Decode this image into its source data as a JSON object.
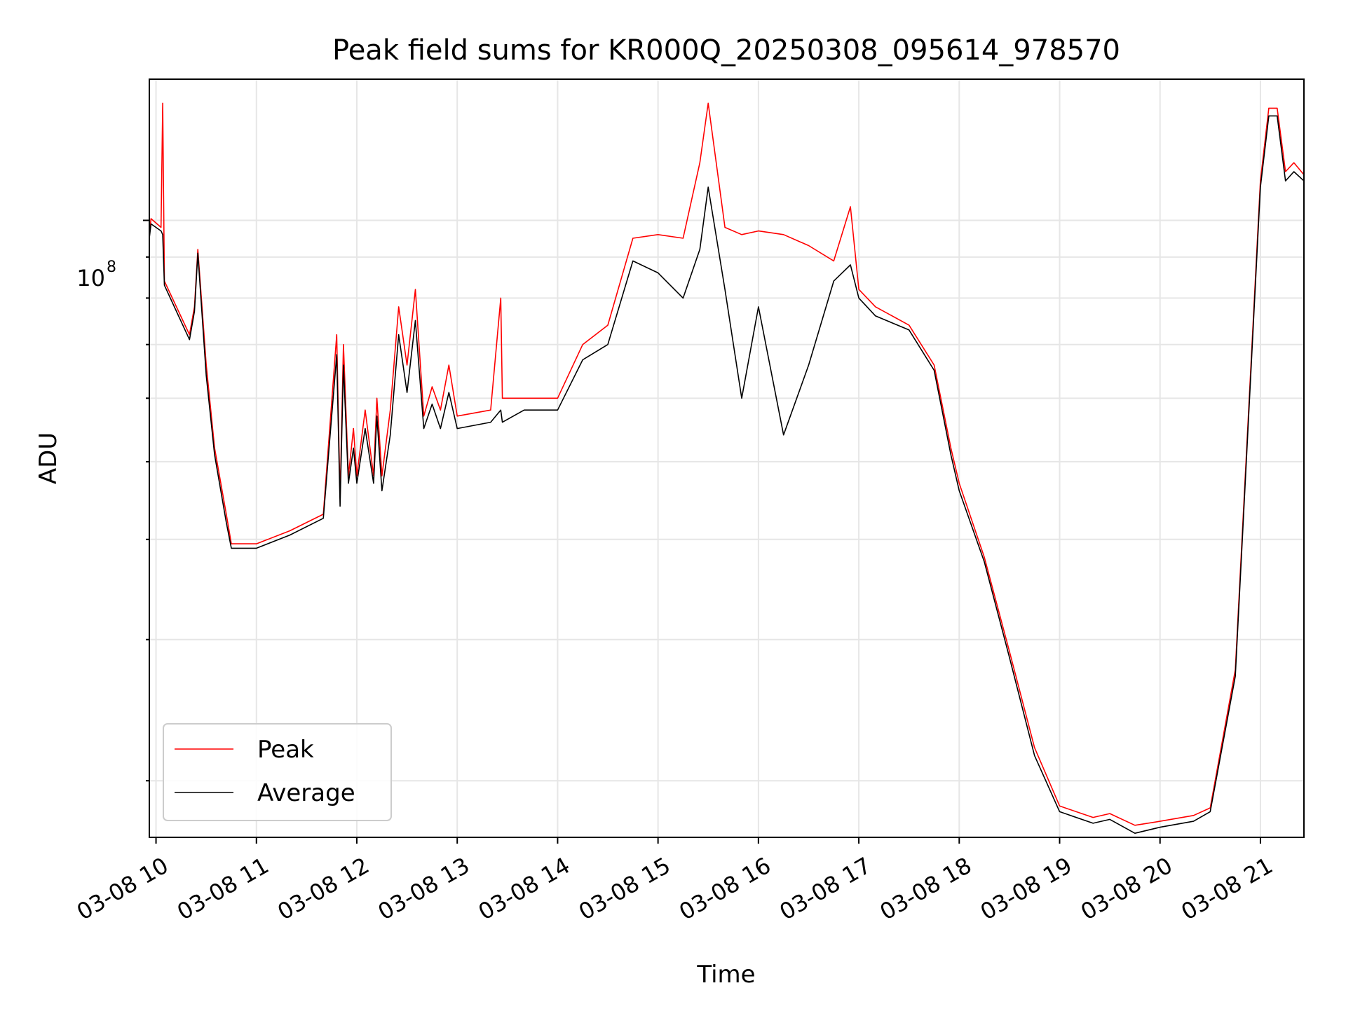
{
  "chart_data": {
    "type": "line",
    "title": "Peak field sums for KR000Q_20250308_095614_978570",
    "xlabel": "Time",
    "ylabel": "ADU",
    "y_scale": "log",
    "y_major_tick_label": {
      "base": "10",
      "exponent": "8",
      "value": 100000000
    },
    "y_minor_ticks": [
      20000000,
      30000000,
      40000000,
      50000000,
      60000000,
      70000000,
      80000000,
      90000000
    ],
    "ylim": [
      17000000,
      150000000
    ],
    "xlim": [
      "2025-03-08 09:56",
      "2025-03-08 21:26"
    ],
    "x_tick_values": [
      "2025-03-08 10:00",
      "2025-03-08 11:00",
      "2025-03-08 12:00",
      "2025-03-08 13:00",
      "2025-03-08 14:00",
      "2025-03-08 15:00",
      "2025-03-08 16:00",
      "2025-03-08 17:00",
      "2025-03-08 18:00",
      "2025-03-08 19:00",
      "2025-03-08 20:00",
      "2025-03-08 21:00"
    ],
    "x_tick_labels": [
      "03-08 10",
      "03-08 11",
      "03-08 12",
      "03-08 13",
      "03-08 14",
      "03-08 15",
      "03-08 16",
      "03-08 17",
      "03-08 18",
      "03-08 19",
      "03-08 20",
      "03-08 21"
    ],
    "grid": true,
    "legend_position": "lower-left",
    "colors": {
      "peak": "#ff0000",
      "average": "#000000",
      "grid": "#e6e6e6"
    },
    "series": [
      {
        "name": "Peak",
        "x": [
          "2025-03-08 09:56",
          "2025-03-08 09:57",
          "2025-03-08 10:03",
          "2025-03-08 10:04",
          "2025-03-08 10:05",
          "2025-03-08 10:20",
          "2025-03-08 10:23",
          "2025-03-08 10:25",
          "2025-03-08 10:30",
          "2025-03-08 10:35",
          "2025-03-08 10:42",
          "2025-03-08 10:45",
          "2025-03-08 11:00",
          "2025-03-08 11:20",
          "2025-03-08 11:40",
          "2025-03-08 11:48",
          "2025-03-08 11:50",
          "2025-03-08 11:52",
          "2025-03-08 11:55",
          "2025-03-08 11:58",
          "2025-03-08 12:00",
          "2025-03-08 12:05",
          "2025-03-08 12:10",
          "2025-03-08 12:12",
          "2025-03-08 12:15",
          "2025-03-08 12:20",
          "2025-03-08 12:25",
          "2025-03-08 12:30",
          "2025-03-08 12:35",
          "2025-03-08 12:40",
          "2025-03-08 12:45",
          "2025-03-08 12:50",
          "2025-03-08 12:55",
          "2025-03-08 13:00",
          "2025-03-08 13:20",
          "2025-03-08 13:26",
          "2025-03-08 13:27",
          "2025-03-08 13:40",
          "2025-03-08 14:00",
          "2025-03-08 14:15",
          "2025-03-08 14:30",
          "2025-03-08 14:45",
          "2025-03-08 15:00",
          "2025-03-08 15:15",
          "2025-03-08 15:25",
          "2025-03-08 15:30",
          "2025-03-08 15:40",
          "2025-03-08 15:50",
          "2025-03-08 16:00",
          "2025-03-08 16:15",
          "2025-03-08 16:30",
          "2025-03-08 16:45",
          "2025-03-08 16:55",
          "2025-03-08 17:00",
          "2025-03-08 17:10",
          "2025-03-08 17:30",
          "2025-03-08 17:45",
          "2025-03-08 17:55",
          "2025-03-08 18:00",
          "2025-03-08 18:15",
          "2025-03-08 18:30",
          "2025-03-08 18:45",
          "2025-03-08 19:00",
          "2025-03-08 19:20",
          "2025-03-08 19:30",
          "2025-03-08 19:45",
          "2025-03-08 20:00",
          "2025-03-08 20:20",
          "2025-03-08 20:30",
          "2025-03-08 20:45",
          "2025-03-08 21:00",
          "2025-03-08 21:05",
          "2025-03-08 21:10",
          "2025-03-08 21:15",
          "2025-03-08 21:20",
          "2025-03-08 21:26"
        ],
        "values": [
          96000000,
          100500000,
          98000000,
          140000000,
          84000000,
          72000000,
          78000000,
          92000000,
          66000000,
          52000000,
          43000000,
          39500000,
          39500000,
          41000000,
          43000000,
          72000000,
          45000000,
          70000000,
          48000000,
          55000000,
          48000000,
          58000000,
          48000000,
          60000000,
          48000000,
          58000000,
          78000000,
          66000000,
          82000000,
          57000000,
          62000000,
          58000000,
          66000000,
          57000000,
          58000000,
          80000000,
          60000000,
          60000000,
          60000000,
          70000000,
          74000000,
          95000000,
          96000000,
          95000000,
          118000000,
          140000000,
          98000000,
          96000000,
          97000000,
          96000000,
          93000000,
          89000000,
          104000000,
          82000000,
          78000000,
          74000000,
          66000000,
          52000000,
          47000000,
          38000000,
          29000000,
          22000000,
          18600000,
          18000000,
          18200000,
          17600000,
          17800000,
          18100000,
          18500000,
          27500000,
          112000000,
          138000000,
          138000000,
          115000000,
          118000000,
          114000000
        ]
      },
      {
        "name": "Average",
        "x": [
          "2025-03-08 09:56",
          "2025-03-08 09:57",
          "2025-03-08 10:03",
          "2025-03-08 10:04",
          "2025-03-08 10:05",
          "2025-03-08 10:20",
          "2025-03-08 10:23",
          "2025-03-08 10:25",
          "2025-03-08 10:30",
          "2025-03-08 10:35",
          "2025-03-08 10:42",
          "2025-03-08 10:45",
          "2025-03-08 11:00",
          "2025-03-08 11:20",
          "2025-03-08 11:40",
          "2025-03-08 11:48",
          "2025-03-08 11:50",
          "2025-03-08 11:52",
          "2025-03-08 11:55",
          "2025-03-08 11:58",
          "2025-03-08 12:00",
          "2025-03-08 12:05",
          "2025-03-08 12:10",
          "2025-03-08 12:12",
          "2025-03-08 12:15",
          "2025-03-08 12:20",
          "2025-03-08 12:25",
          "2025-03-08 12:30",
          "2025-03-08 12:35",
          "2025-03-08 12:40",
          "2025-03-08 12:45",
          "2025-03-08 12:50",
          "2025-03-08 12:55",
          "2025-03-08 13:00",
          "2025-03-08 13:20",
          "2025-03-08 13:26",
          "2025-03-08 13:27",
          "2025-03-08 13:40",
          "2025-03-08 14:00",
          "2025-03-08 14:15",
          "2025-03-08 14:30",
          "2025-03-08 14:45",
          "2025-03-08 15:00",
          "2025-03-08 15:15",
          "2025-03-08 15:25",
          "2025-03-08 15:30",
          "2025-03-08 15:40",
          "2025-03-08 15:50",
          "2025-03-08 16:00",
          "2025-03-08 16:15",
          "2025-03-08 16:30",
          "2025-03-08 16:45",
          "2025-03-08 16:55",
          "2025-03-08 17:00",
          "2025-03-08 17:10",
          "2025-03-08 17:30",
          "2025-03-08 17:45",
          "2025-03-08 17:55",
          "2025-03-08 18:00",
          "2025-03-08 18:15",
          "2025-03-08 18:30",
          "2025-03-08 18:45",
          "2025-03-08 19:00",
          "2025-03-08 19:20",
          "2025-03-08 19:30",
          "2025-03-08 19:45",
          "2025-03-08 20:00",
          "2025-03-08 20:20",
          "2025-03-08 20:30",
          "2025-03-08 20:45",
          "2025-03-08 21:00",
          "2025-03-08 21:05",
          "2025-03-08 21:10",
          "2025-03-08 21:15",
          "2025-03-08 21:20",
          "2025-03-08 21:26"
        ],
        "values": [
          95000000,
          99000000,
          97000000,
          96000000,
          83000000,
          71000000,
          77000000,
          91000000,
          64000000,
          51000000,
          42000000,
          39000000,
          39000000,
          40500000,
          42500000,
          68000000,
          44000000,
          66000000,
          47000000,
          52000000,
          47000000,
          55000000,
          47000000,
          57000000,
          46000000,
          54000000,
          72000000,
          61000000,
          75000000,
          55000000,
          59000000,
          55000000,
          61000000,
          55000000,
          56000000,
          58000000,
          56000000,
          58000000,
          58000000,
          67000000,
          70000000,
          89000000,
          86000000,
          80000000,
          92000000,
          110000000,
          82000000,
          60000000,
          78000000,
          54000000,
          66000000,
          84000000,
          88000000,
          80000000,
          76000000,
          73000000,
          65000000,
          51000000,
          46000000,
          37500000,
          28500000,
          21500000,
          18300000,
          17700000,
          17900000,
          17200000,
          17500000,
          17800000,
          18300000,
          27000000,
          110000000,
          135000000,
          135000000,
          112000000,
          115000000,
          112000000
        ]
      }
    ]
  }
}
